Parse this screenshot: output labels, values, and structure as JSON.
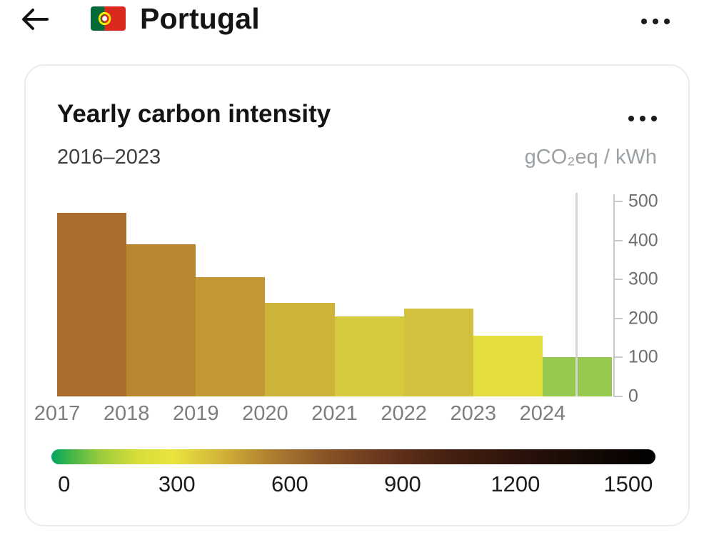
{
  "header": {
    "title": "Portugal",
    "flag": {
      "green": "#046A38",
      "red": "#DA291C",
      "yellow": "#FFE900"
    }
  },
  "card": {
    "title": "Yearly carbon intensity",
    "date_range": "2016–2023",
    "unit": "gCO₂eq / kWh"
  },
  "chart_data": {
    "type": "bar",
    "title": "Yearly carbon intensity",
    "subtitle": "2016–2023",
    "ylabel": "gCO₂eq / kWh",
    "categories": [
      "2016",
      "2017",
      "2018",
      "2019",
      "2020",
      "2021",
      "2022",
      "2023"
    ],
    "x_tick_labels": [
      "2017",
      "2018",
      "2019",
      "2020",
      "2021",
      "2022",
      "2023",
      "2024"
    ],
    "values": [
      470,
      390,
      305,
      240,
      205,
      225,
      155,
      100
    ],
    "bar_colors": [
      "#AA6D2D",
      "#B7862F",
      "#C19834",
      "#CDB339",
      "#D5C93E",
      "#D2C13C",
      "#E4DF3F",
      "#97C84E"
    ],
    "ylim": [
      0,
      500
    ],
    "yticks": [
      0,
      100,
      200,
      300,
      400,
      500
    ],
    "grid": false,
    "now_marker_fraction": 0.935,
    "legend": {
      "min": 0,
      "max": 1500,
      "ticks": [
        0,
        300,
        600,
        900,
        1200,
        1500
      ],
      "gradient_stops": [
        {
          "pos": 0,
          "color": "#00A55E"
        },
        {
          "pos": 3,
          "color": "#3DB54A"
        },
        {
          "pos": 8,
          "color": "#9ACB3C"
        },
        {
          "pos": 14,
          "color": "#D6DC3A"
        },
        {
          "pos": 20,
          "color": "#E9E53F"
        },
        {
          "pos": 28,
          "color": "#D3B437"
        },
        {
          "pos": 36,
          "color": "#B08030"
        },
        {
          "pos": 45,
          "color": "#8A5526"
        },
        {
          "pos": 55,
          "color": "#68361C"
        },
        {
          "pos": 65,
          "color": "#472112"
        },
        {
          "pos": 78,
          "color": "#2A120A"
        },
        {
          "pos": 100,
          "color": "#000000"
        }
      ]
    }
  }
}
